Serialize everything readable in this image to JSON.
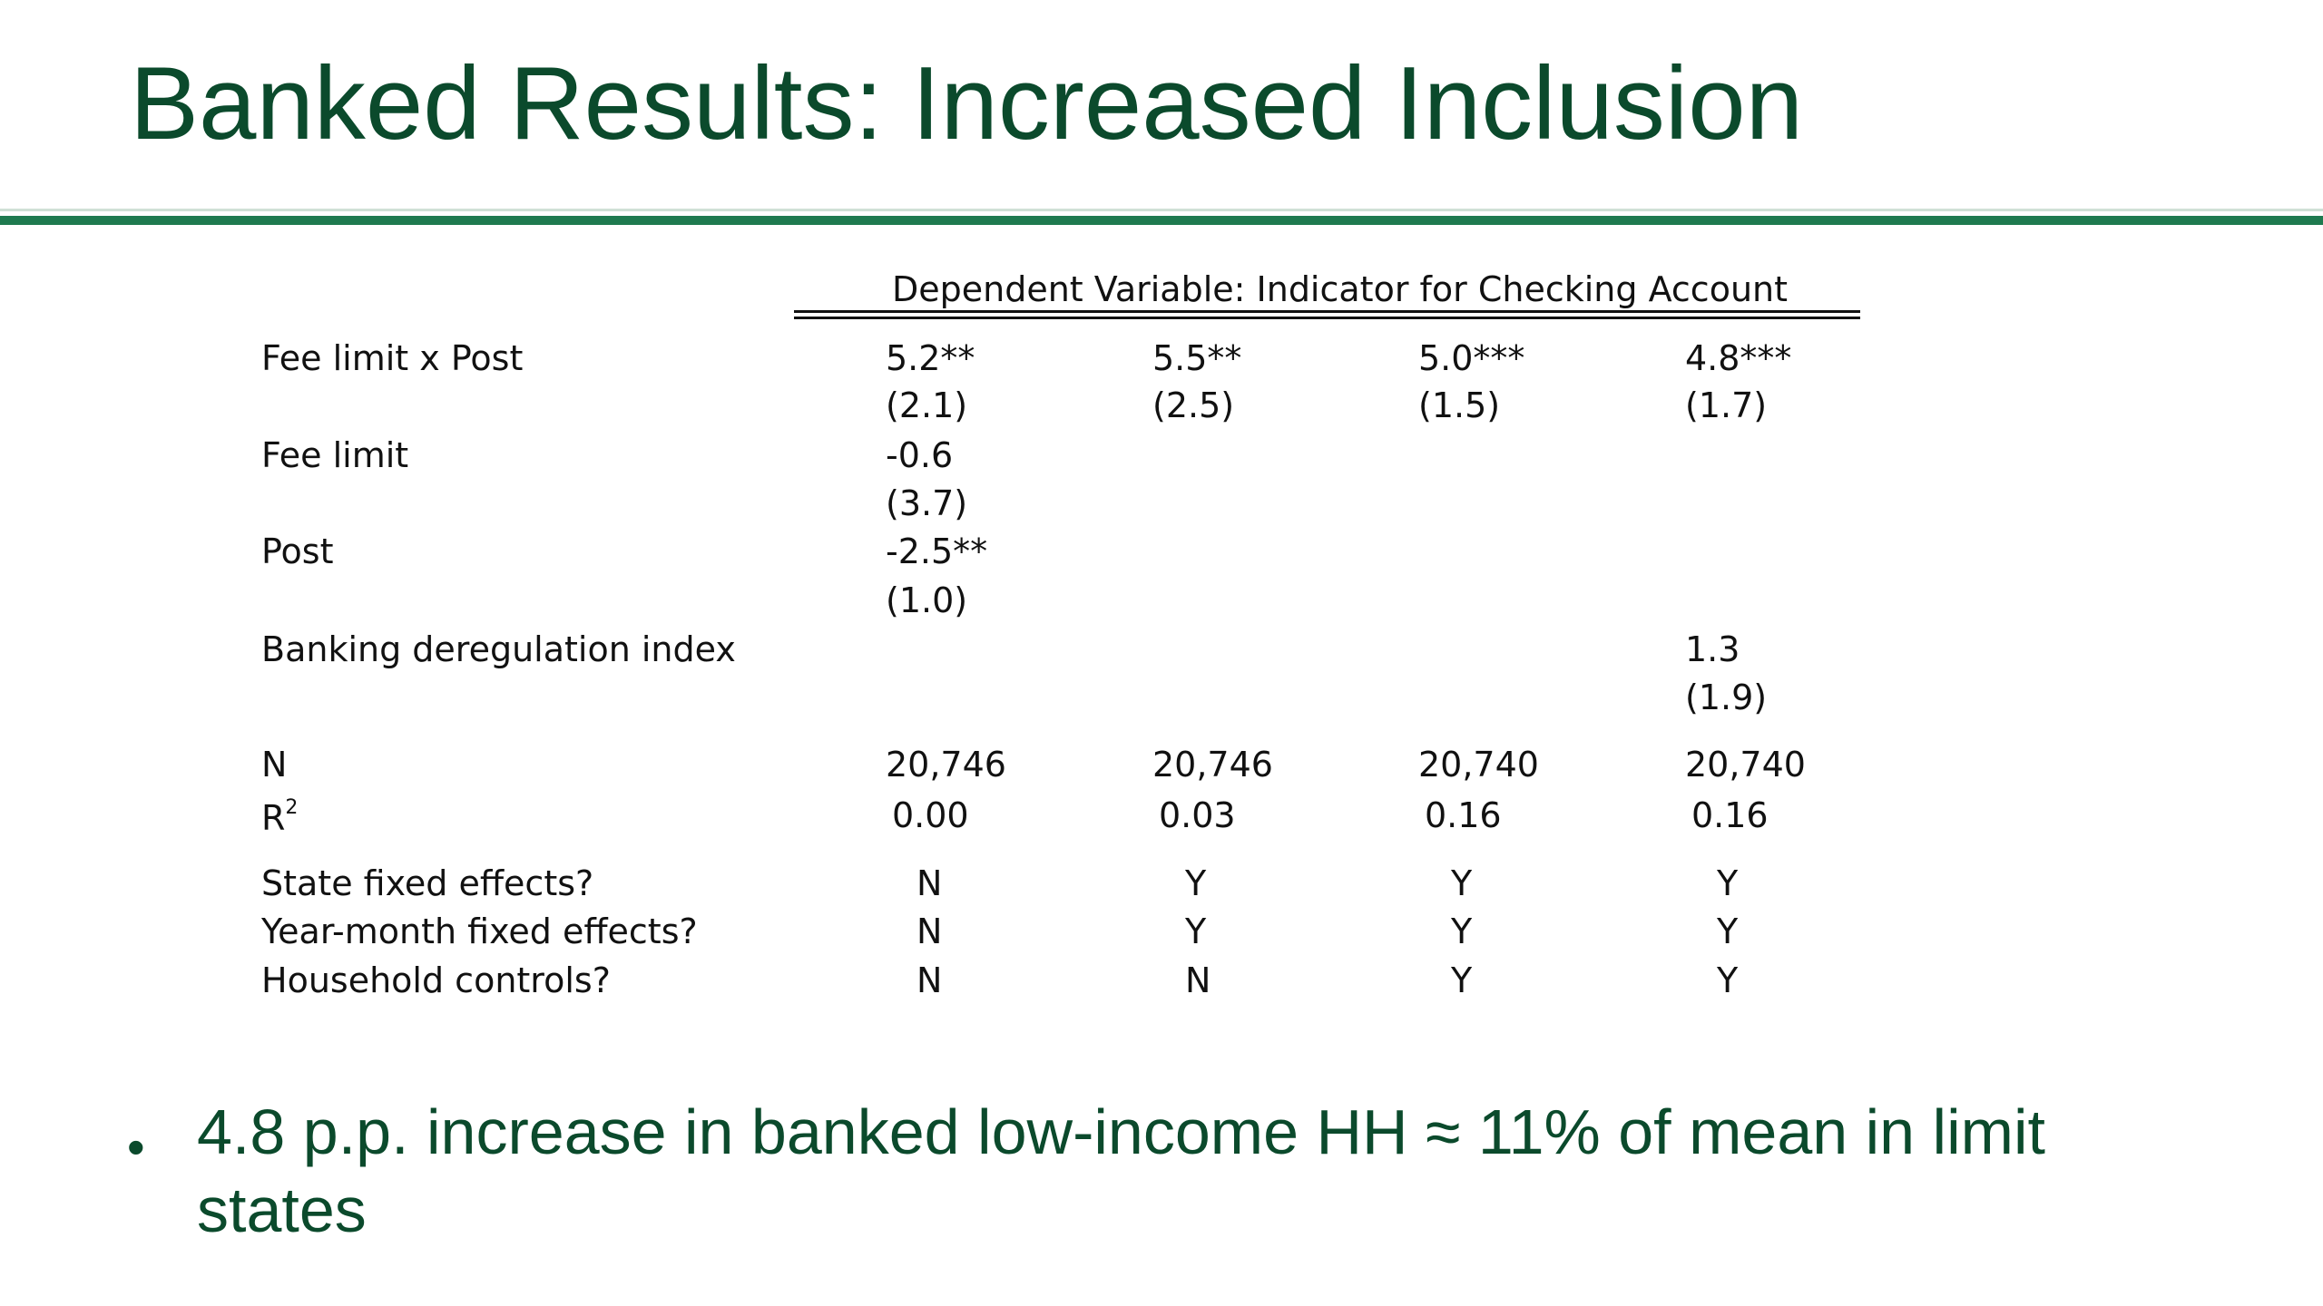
{
  "title": "Banked Results: Increased Inclusion",
  "table": {
    "header": "Dependent Variable: Indicator for Checking Account",
    "rows": [
      {
        "label": "Fee limit x Post",
        "coef": [
          "5.2**",
          "5.5**",
          "5.0***",
          "4.8***"
        ],
        "se": [
          "(2.1)",
          "(2.5)",
          "(1.5)",
          "(1.7)"
        ]
      },
      {
        "label": "Fee limit",
        "coef": [
          "-0.6",
          "",
          "",
          ""
        ],
        "se": [
          "(3.7)",
          "",
          "",
          ""
        ]
      },
      {
        "label": "Post",
        "coef": [
          "-2.5**",
          "",
          "",
          ""
        ],
        "se": [
          "(1.0)",
          "",
          "",
          ""
        ]
      },
      {
        "label": "Banking deregulation index",
        "coef": [
          "",
          "",
          "",
          "1.3"
        ],
        "se": [
          "",
          "",
          "",
          "(1.9)"
        ]
      }
    ],
    "n_label": "N",
    "n_values": [
      "20,746",
      "20,746",
      "20,740",
      "20,740"
    ],
    "r2_label": "R",
    "r2_sup": "2",
    "r2_values": [
      "0.00",
      "0.03",
      "0.16",
      "0.16"
    ],
    "controls": [
      {
        "label": "State fixed effects?",
        "values": [
          "N",
          "Y",
          "Y",
          "Y"
        ]
      },
      {
        "label": "Year-month fixed effects?",
        "values": [
          "N",
          "Y",
          "Y",
          "Y"
        ]
      },
      {
        "label": "Household controls?",
        "values": [
          "N",
          "N",
          "Y",
          "Y"
        ]
      }
    ]
  },
  "bullets": [
    {
      "marker": "•",
      "text": "4.8 p.p. increase in banked low-income HH ≈ 11% of mean in limit states"
    }
  ],
  "colors": {
    "title": "#0b4a2c",
    "rule": "#1e7a4f",
    "text": "#111111"
  }
}
